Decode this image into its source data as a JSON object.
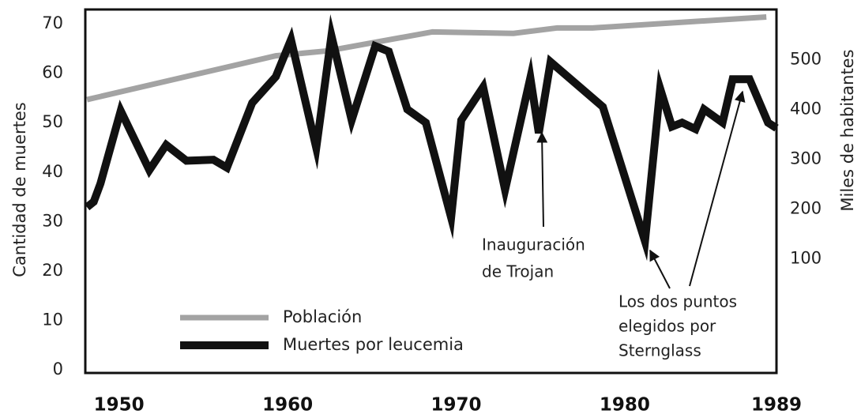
{
  "chart_data": {
    "type": "line",
    "y_label": "Cantidad de muertes",
    "y2_label": "Miles de habitantes",
    "xlim": [
      1948,
      1989
    ],
    "xticks": [
      1950,
      1960,
      1970,
      1980,
      1989
    ],
    "ylim": [
      -0.64,
      72.9
    ],
    "yticks": [
      0,
      10,
      20,
      30,
      40,
      50,
      60,
      70
    ],
    "y2lim": [
      -129,
      601
    ],
    "y2ticks": [
      100,
      200,
      300,
      400,
      500
    ],
    "grid": false,
    "series": [
      {
        "name": "Población",
        "color": "#a3a3a3",
        "axis": "y2",
        "x": [
          1948.1,
          1959.3,
          1962.4,
          1968.6,
          1973.4,
          1976.0,
          1978.1,
          1988.4
        ],
        "values": [
          420,
          508,
          518,
          556,
          553,
          564,
          564,
          586
        ]
      },
      {
        "name": "Muertes por leucemia",
        "color": "#111111",
        "x": [
          1948.1,
          1948.5,
          1948.9,
          1950.1,
          1951.8,
          1952.8,
          1954.0,
          1955.6,
          1956.4,
          1957.9,
          1959.3,
          1960.2,
          1961.7,
          1962.6,
          1963.8,
          1965.2,
          1966.0,
          1967.1,
          1968.2,
          1969.7,
          1970.3,
          1971.6,
          1972.9,
          1974.4,
          1974.9,
          1975.6,
          1978.7,
          1981.2,
          1982.1,
          1982.8,
          1983.4,
          1984.2,
          1984.7,
          1985.8,
          1986.4,
          1987.4,
          1988.5,
          1989.0
        ],
        "values": [
          32.9,
          34.0,
          37.7,
          52.4,
          40.4,
          45.5,
          42.3,
          42.5,
          40.9,
          54.0,
          59.3,
          66.8,
          44.9,
          67.6,
          50.5,
          65.5,
          64.4,
          52.7,
          50.0,
          30.8,
          50.5,
          57.2,
          36.4,
          59.1,
          47.9,
          62.3,
          53.2,
          26.0,
          56.9,
          49.2,
          50.0,
          48.7,
          52.7,
          50.0,
          58.8,
          58.8,
          50.0,
          48.9
        ]
      }
    ],
    "annotations": [
      {
        "lines": [
          "Inauguración",
          "de Trojan"
        ]
      },
      {
        "lines": [
          "Los dos puntos",
          "elegidos por",
          "Sternglass"
        ]
      }
    ]
  }
}
